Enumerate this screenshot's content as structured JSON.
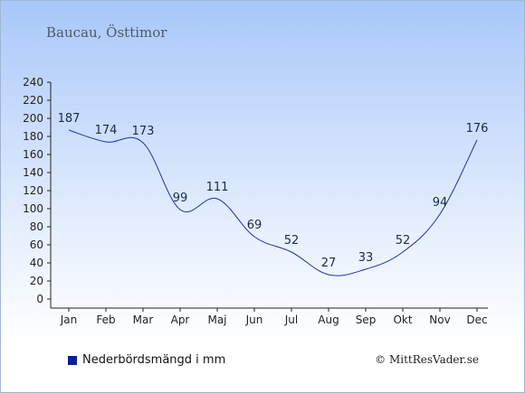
{
  "chart_data": {
    "type": "line",
    "title": "Baucau, Östtimor",
    "categories": [
      "Jan",
      "Feb",
      "Mar",
      "Apr",
      "Maj",
      "Jun",
      "Jul",
      "Aug",
      "Sep",
      "Okt",
      "Nov",
      "Dec"
    ],
    "series": [
      {
        "name": "Nederbördsmängd i mm",
        "values": [
          187,
          174,
          173,
          99,
          111,
          69,
          52,
          27,
          33,
          52,
          94,
          176
        ],
        "color": "#1f2fa8"
      }
    ],
    "y_ticks": [
      0,
      20,
      40,
      60,
      80,
      100,
      120,
      140,
      160,
      180,
      200,
      220,
      240
    ],
    "ylim": [
      0,
      240
    ],
    "grid": false,
    "legend_position": "bottom-left"
  },
  "legend": {
    "label": "Nederbördsmängd i mm",
    "swatch_color": "#0a1f9e"
  },
  "copyright": "© MittResVader.se"
}
